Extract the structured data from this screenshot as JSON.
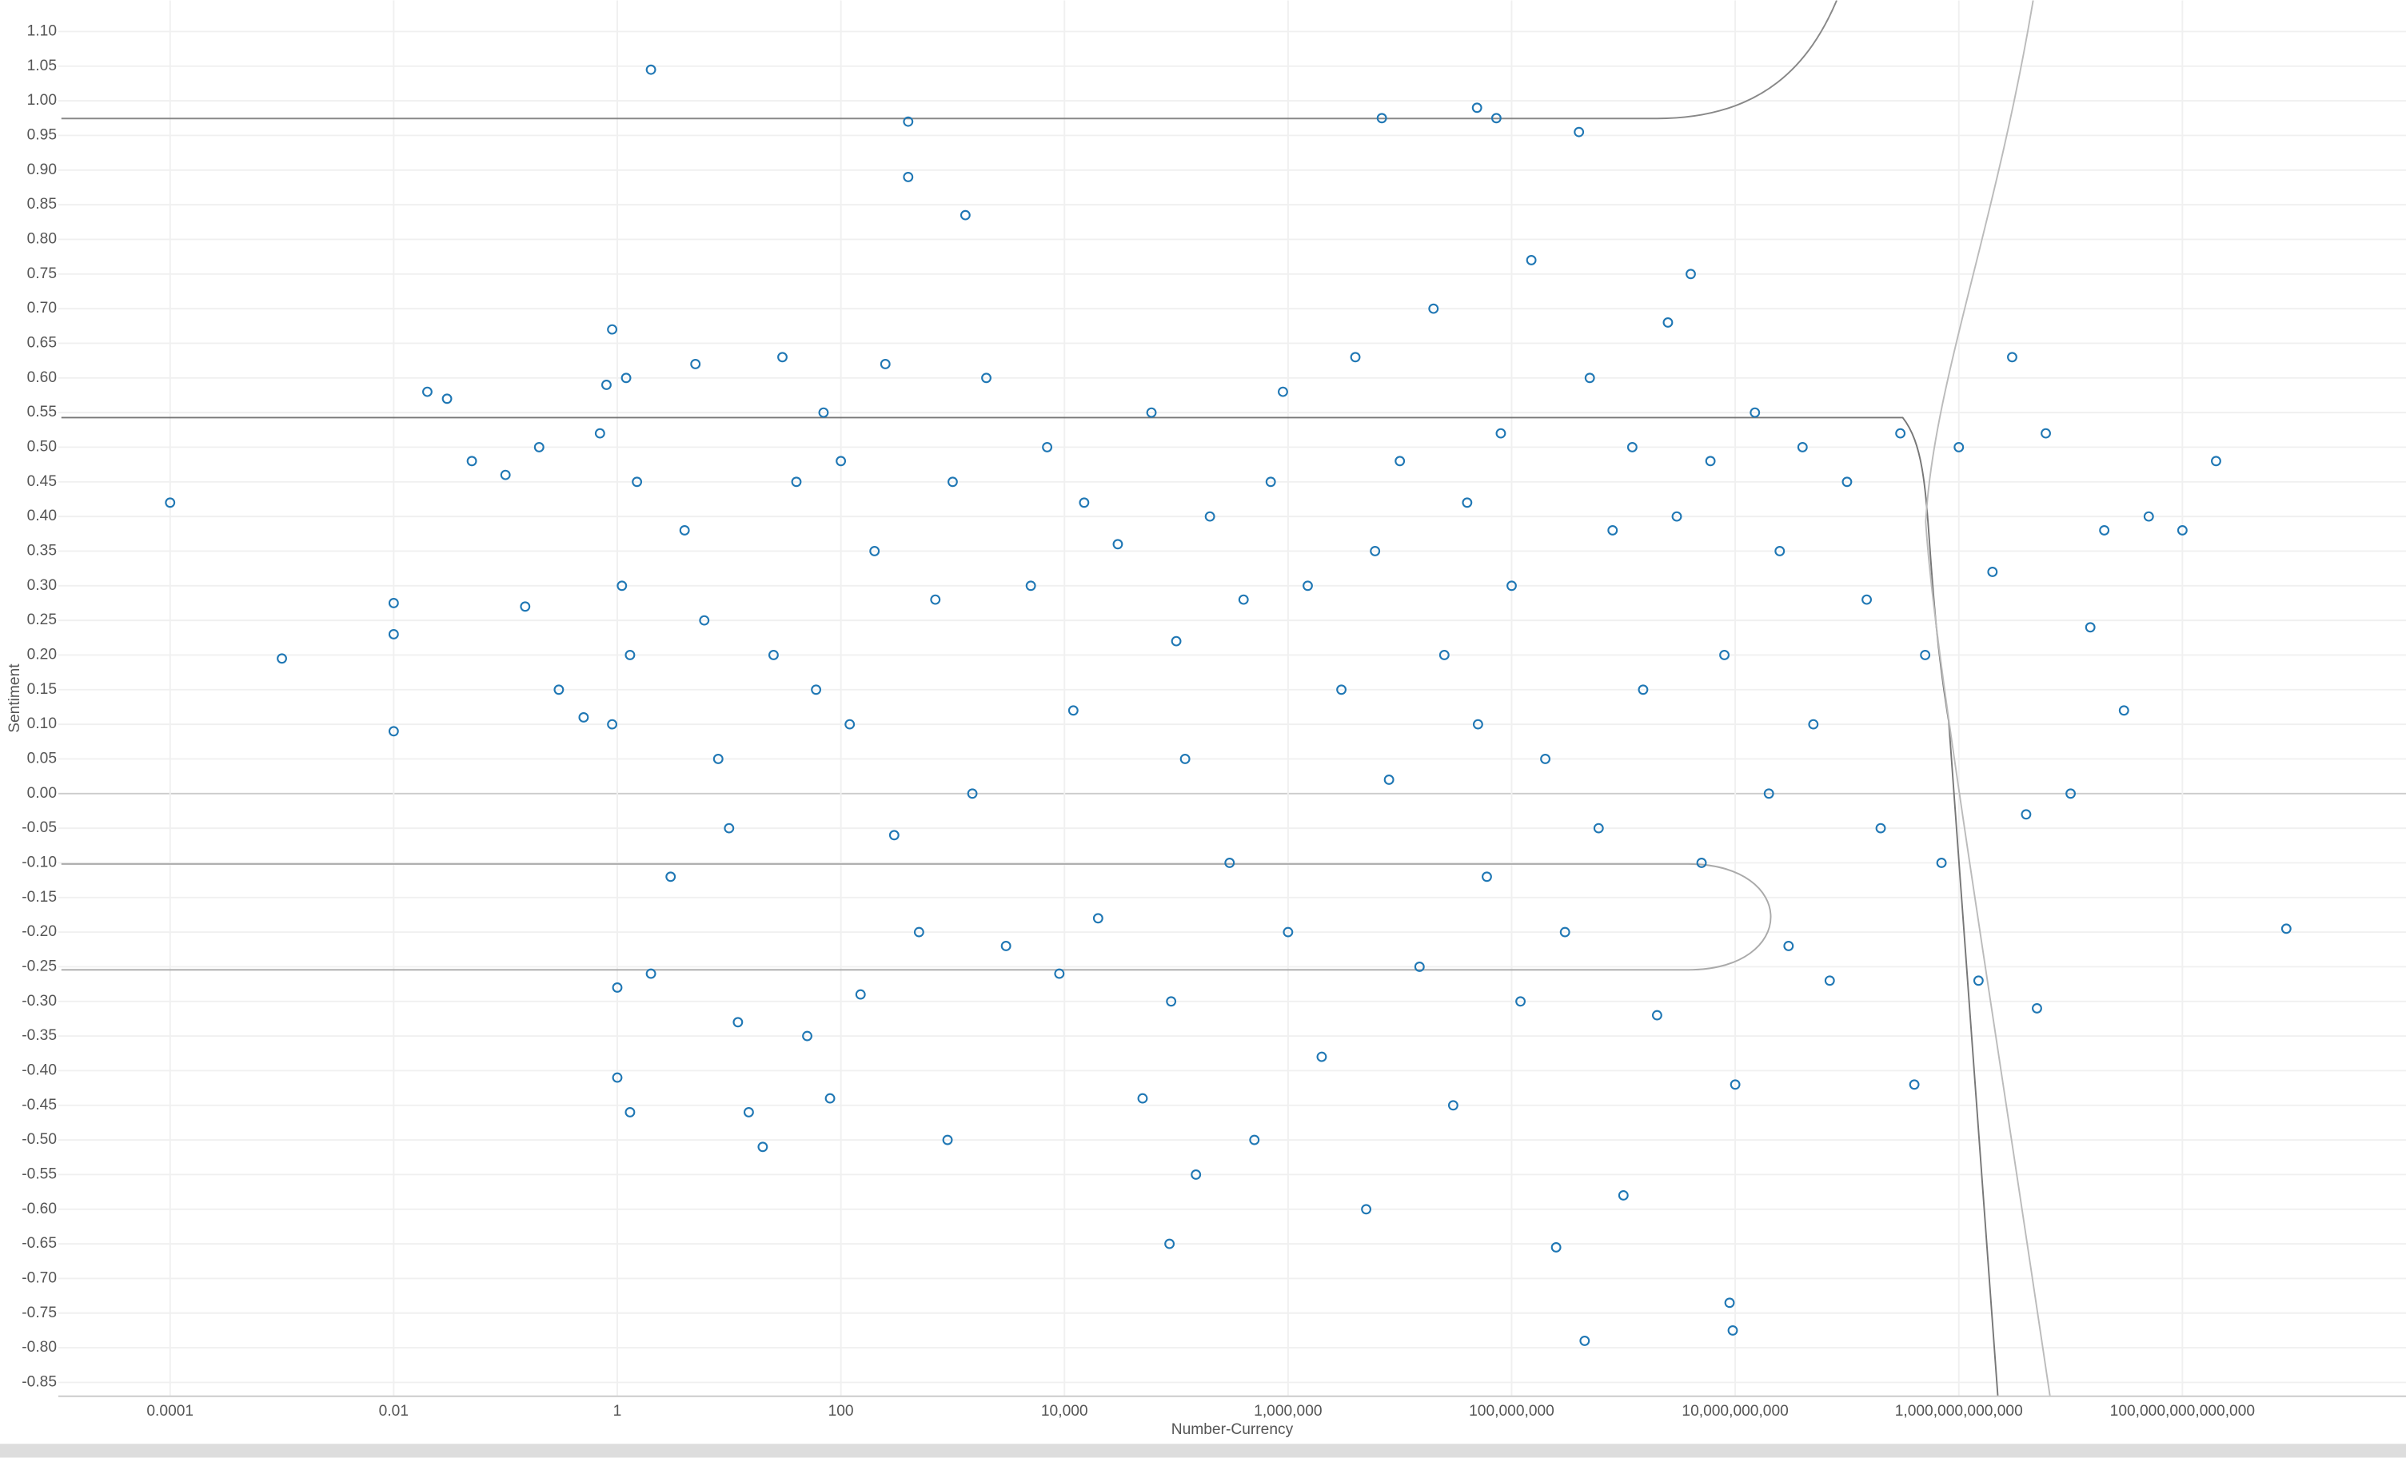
{
  "chart_data": {
    "type": "scatter",
    "x_label": "Number-Currency",
    "y_label": "Sentiment",
    "color": "#1f77b4",
    "log_x": true,
    "grid": true,
    "xlim": [
      1e-05,
      1e+16
    ],
    "ylim": [
      -0.87,
      1.145
    ],
    "xticks": [
      0.0001,
      0.01,
      1,
      100,
      {
        "value": 10000,
        "label": "10,000"
      },
      {
        "value": 1000000,
        "label": "1,000,000"
      },
      {
        "value": 100000000,
        "label": "100,000,000"
      },
      {
        "value": 10000000000,
        "label": "10,000,000,000"
      },
      {
        "value": 1000000000000,
        "label": "1,000,000,000,000"
      },
      {
        "value": 100000000000000,
        "label": "100,000,000,000,000"
      }
    ],
    "yticks": [
      {
        "value": 1.1,
        "label": "1.10"
      },
      {
        "value": 1.05,
        "label": "1.05"
      },
      {
        "value": 1,
        "label": "1.00"
      },
      {
        "value": 0.95,
        "label": "0.95"
      },
      {
        "value": 0.9,
        "label": "0.90"
      },
      {
        "value": 0.85,
        "label": "0.85"
      },
      {
        "value": 0.8,
        "label": "0.80"
      },
      {
        "value": 0.75,
        "label": "0.75"
      },
      {
        "value": 0.7,
        "label": "0.70"
      },
      {
        "value": 0.65,
        "label": "0.65"
      },
      {
        "value": 0.6,
        "label": "0.60"
      },
      {
        "value": 0.55,
        "label": "0.55"
      },
      {
        "value": 0.5,
        "label": "0.50"
      },
      {
        "value": 0.45,
        "label": "0.45"
      },
      {
        "value": 0.4,
        "label": "0.40"
      },
      {
        "value": 0.35,
        "label": "0.35"
      },
      {
        "value": 0.3,
        "label": "0.30"
      },
      {
        "value": 0.25,
        "label": "0.25"
      },
      {
        "value": 0.2,
        "label": "0.20"
      },
      {
        "value": 0.15,
        "label": "0.15"
      },
      {
        "value": 0.1,
        "label": "0.10"
      },
      {
        "value": 0.05,
        "label": "0.05"
      },
      {
        "value": 0,
        "label": "0.00"
      },
      {
        "value": -0.05,
        "label": "-0.05"
      },
      {
        "value": -0.1,
        "label": "-0.10"
      },
      {
        "value": -0.15,
        "label": "-0.15"
      },
      {
        "value": -0.2,
        "label": "-0.20"
      },
      {
        "value": -0.25,
        "label": "-0.25"
      },
      {
        "value": -0.3,
        "label": "-0.30"
      },
      {
        "value": -0.35,
        "label": "-0.35"
      },
      {
        "value": -0.4,
        "label": "-0.40"
      },
      {
        "value": -0.45,
        "label": "-0.45"
      },
      {
        "value": -0.5,
        "label": "-0.50"
      },
      {
        "value": -0.55,
        "label": "-0.55"
      },
      {
        "value": -0.6,
        "label": "-0.60"
      },
      {
        "value": -0.65,
        "label": "-0.65"
      },
      {
        "value": -0.7,
        "label": "-0.70"
      },
      {
        "value": -0.75,
        "label": "-0.75"
      },
      {
        "value": -0.8,
        "label": "-0.80"
      },
      {
        "value": -0.85,
        "label": "-0.85"
      }
    ],
    "x": [
      0.0001,
      0.001,
      0.01,
      0.01,
      0.01,
      2,
      400,
      400,
      1300,
      6900000.0,
      49000000.0,
      73000000.0,
      400000000.0,
      850000000000000.0,
      450000000.0,
      8900000000.0,
      9500000000.0,
      87000.0,
      250000000.0,
      0.03,
      0.02,
      0.05,
      0.1,
      0.2,
      0.15,
      0.3,
      0.5,
      0.7,
      0.8,
      0.9,
      1.2,
      1.5,
      1.1,
      1.3,
      0.9,
      1,
      1,
      1.3,
      2,
      3,
      5,
      4,
      6,
      8,
      10,
      12,
      15,
      20,
      30,
      25,
      40,
      50,
      60,
      70,
      80,
      100,
      120,
      150,
      200,
      250,
      300,
      500,
      700,
      900,
      1000,
      1500,
      2000,
      3000,
      5000,
      7000,
      9000,
      12000,
      15000,
      20000,
      30000,
      50000,
      60000,
      90000,
      100000.0,
      120000.0,
      150000.0,
      200000.0,
      300000.0,
      400000.0,
      500000.0,
      700000.0,
      900000.0,
      1000000.0,
      1500000.0,
      2000000.0,
      3000000.0,
      4000000.0,
      5000000.0,
      6000000.0,
      8000000.0,
      10000000.0,
      15000000.0,
      20000000.0,
      25000000.0,
      30000000.0,
      40000000.0,
      50000000.0,
      60000000.0,
      80000000.0,
      100000000.0,
      120000000.0,
      150000000.0,
      200000000.0,
      300000000.0,
      500000000.0,
      600000000.0,
      800000000.0,
      1000000000.0,
      1200000000.0,
      1500000000.0,
      2000000000.0,
      2500000000.0,
      3000000000.0,
      4000000000.0,
      5000000000.0,
      6000000000.0,
      8000000000.0,
      10000000000.0,
      15000000000.0,
      20000000000.0,
      25000000000.0,
      30000000000.0,
      40000000000.0,
      50000000000.0,
      70000000000.0,
      100000000000.0,
      150000000000.0,
      200000000000.0,
      300000000000.0,
      400000000000.0,
      500000000000.0,
      700000000000.0,
      1000000000000.0,
      1500000000000.0,
      2000000000000.0,
      3000000000000.0,
      4000000000000.0,
      5000000000000.0,
      6000000000000.0,
      10000000000000.0,
      15000000000000.0,
      20000000000000.0,
      30000000000000.0,
      50000000000000.0,
      100000000000000.0,
      200000000000000.0
    ],
    "values": [
      0.42,
      0.195,
      0.275,
      0.23,
      0.09,
      1.045,
      0.97,
      0.89,
      0.835,
      0.975,
      0.99,
      0.975,
      0.955,
      -0.195,
      -0.79,
      -0.735,
      -0.775,
      -0.65,
      -0.655,
      0.57,
      0.58,
      0.48,
      0.46,
      0.5,
      0.27,
      0.15,
      0.11,
      0.52,
      0.59,
      0.67,
      0.6,
      0.45,
      0.3,
      0.2,
      0.1,
      -0.28,
      -0.41,
      -0.46,
      -0.26,
      -0.12,
      0.62,
      0.38,
      0.25,
      0.05,
      -0.05,
      -0.33,
      -0.46,
      -0.51,
      0.63,
      0.2,
      0.45,
      -0.35,
      0.15,
      0.55,
      -0.44,
      0.48,
      0.1,
      -0.29,
      0.35,
      0.62,
      -0.06,
      -0.2,
      0.28,
      -0.5,
      0.45,
      0,
      0.6,
      -0.22,
      0.3,
      0.5,
      -0.26,
      0.12,
      0.42,
      -0.18,
      0.36,
      -0.44,
      0.55,
      -0.3,
      0.22,
      0.05,
      -0.55,
      0.4,
      -0.1,
      0.28,
      -0.5,
      0.45,
      0.58,
      -0.2,
      0.3,
      -0.38,
      0.15,
      0.63,
      -0.6,
      0.35,
      0.02,
      0.48,
      -0.25,
      0.7,
      0.2,
      -0.45,
      0.42,
      0.1,
      -0.12,
      0.52,
      0.3,
      -0.3,
      0.77,
      0.05,
      -0.2,
      0.6,
      -0.05,
      0.38,
      -0.58,
      0.5,
      0.15,
      -0.32,
      0.68,
      0.4,
      0.75,
      -0.1,
      0.48,
      0.2,
      -0.42,
      0.55,
      0,
      0.35,
      -0.22,
      0.5,
      0.1,
      -0.27,
      0.45,
      0.28,
      -0.05,
      0.52,
      -0.42,
      0.2,
      -0.1,
      0.5,
      -0.27,
      0.32,
      0.63,
      -0.03,
      -0.31,
      0.52,
      0,
      0.24,
      0.38,
      0.12,
      0.4,
      0.38,
      0.48
    ]
  }
}
